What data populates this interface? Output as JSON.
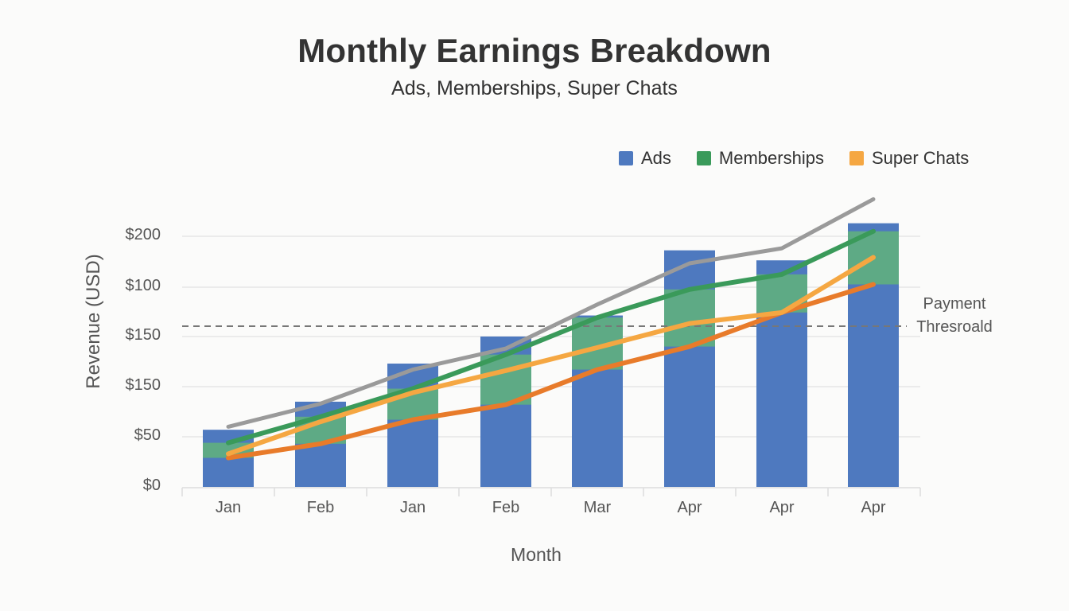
{
  "title": "Monthly Earnings Breakdown",
  "subtitle": "Ads, Memberships, Super Chats",
  "legend": [
    {
      "label": "Ads",
      "color": "#4e79bf"
    },
    {
      "label": "Memberships",
      "color": "#3a9a5a"
    },
    {
      "label": "Super Chats",
      "color": "#f5a742"
    }
  ],
  "axes": {
    "ylabel": "Revenue (USD)",
    "xlabel": "Month",
    "yticks": [
      "$200",
      "$100",
      "$150",
      "$150",
      "$50",
      "$0"
    ],
    "xticks": [
      "Jan",
      "Feb",
      "Jan",
      "Feb",
      "Mar",
      "Apr",
      "Apr",
      "Apr"
    ]
  },
  "threshold": {
    "label_line1": "Payment",
    "label_line2": "Thresroald"
  },
  "colors": {
    "ads": "#4e79bf",
    "memberships": "#3a9a5a",
    "memberships_fill": "#5fad82",
    "super_chats": "#f5a742",
    "orange_line": "#e87b2a",
    "total_line": "#9a9a9a",
    "threshold": "#777777",
    "grid": "#e6e6e6"
  },
  "chart_data": {
    "type": "bar",
    "title": "Monthly Earnings Breakdown",
    "subtitle": "Ads, Memberships, Super Chats",
    "xlabel": "Month",
    "ylabel": "Revenue (USD)",
    "categories": [
      "Jan",
      "Feb",
      "Jan",
      "Feb",
      "Mar",
      "Apr",
      "Apr",
      "Apr"
    ],
    "ytick_labels": [
      "$0",
      "$50",
      "$150",
      "$150",
      "$100",
      "$200"
    ],
    "ylim": [
      0,
      250
    ],
    "grid": true,
    "legend_position": "top-right",
    "series": [
      {
        "name": "Ads",
        "type": "bar",
        "color": "#4e79bf",
        "values": [
          57,
          85,
          123,
          150,
          171,
          236,
          226,
          263
        ]
      },
      {
        "name": "Memberships",
        "type": "line",
        "color": "#3a9a5a",
        "values": [
          44,
          70,
          98,
          132,
          169,
          197,
          212,
          255
        ]
      },
      {
        "name": "Super Chats",
        "type": "line",
        "color": "#f5a742",
        "values": [
          33,
          65,
          94,
          116,
          139,
          163,
          174,
          229
        ]
      },
      {
        "name": "Orange line (unlabeled)",
        "type": "line",
        "color": "#e87b2a",
        "values": [
          29,
          43,
          67,
          82,
          117,
          140,
          174,
          202
        ]
      },
      {
        "name": "Total (unlabeled)",
        "type": "line",
        "color": "#9a9a9a",
        "values": [
          60,
          83,
          117,
          138,
          182,
          223,
          238,
          287
        ]
      }
    ],
    "annotations": [
      {
        "type": "hline",
        "label": "Payment Thresroald",
        "value": 160,
        "style": "dashed"
      }
    ]
  }
}
